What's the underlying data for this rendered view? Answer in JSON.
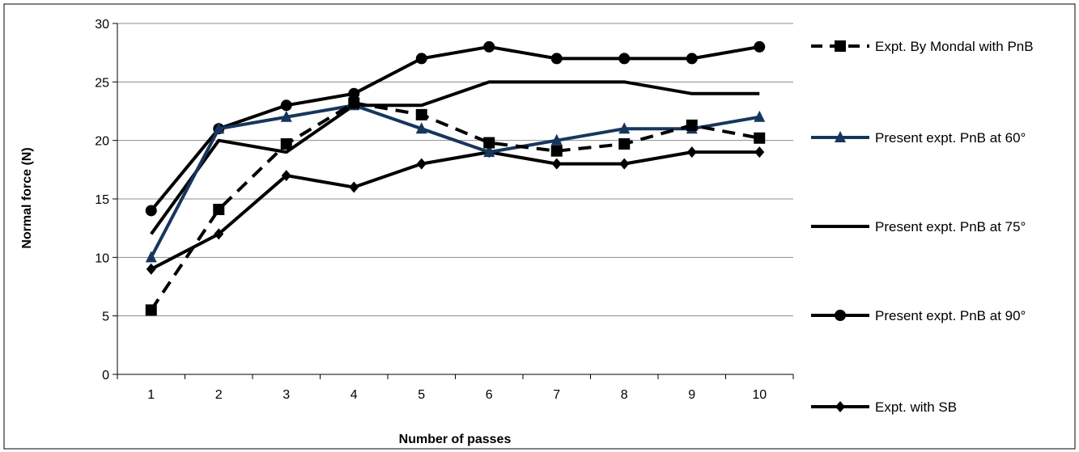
{
  "chart_data": {
    "type": "line",
    "title": "",
    "xlabel": "Number of passes",
    "ylabel": "Normal  force (N)",
    "x": [
      1,
      2,
      3,
      4,
      5,
      6,
      7,
      8,
      9,
      10
    ],
    "ylim": [
      0,
      30
    ],
    "yticks": [
      0,
      5,
      10,
      15,
      20,
      25,
      30
    ],
    "grid": "horizontal",
    "legend_position": "right",
    "series": [
      {
        "name": "Expt. By Mondal with PnB",
        "values": [
          5.5,
          14.1,
          19.7,
          23.2,
          22.2,
          19.8,
          19.1,
          19.7,
          21.3,
          20.2
        ],
        "color": "#000000",
        "dash": "dashed",
        "marker": "square"
      },
      {
        "name": "Present expt. PnB at 60°",
        "values": [
          10,
          21,
          22,
          23,
          21,
          19,
          20,
          21,
          21,
          22
        ],
        "color": "#17365d",
        "dash": "solid",
        "marker": "triangle"
      },
      {
        "name": "Present expt. PnB at 75°",
        "values": [
          12,
          20,
          19,
          23,
          23,
          25,
          25,
          25,
          24,
          24
        ],
        "color": "#000000",
        "dash": "solid",
        "marker": "none"
      },
      {
        "name": "Present expt. PnB at 90°",
        "values": [
          14,
          21,
          23,
          24,
          27,
          28,
          27,
          27,
          27,
          28
        ],
        "color": "#000000",
        "dash": "solid",
        "marker": "circle"
      },
      {
        "name": "Expt. with SB",
        "values": [
          9,
          12,
          17,
          16,
          18,
          19,
          18,
          18,
          19,
          19
        ],
        "color": "#000000",
        "dash": "solid",
        "marker": "diamond"
      }
    ]
  }
}
